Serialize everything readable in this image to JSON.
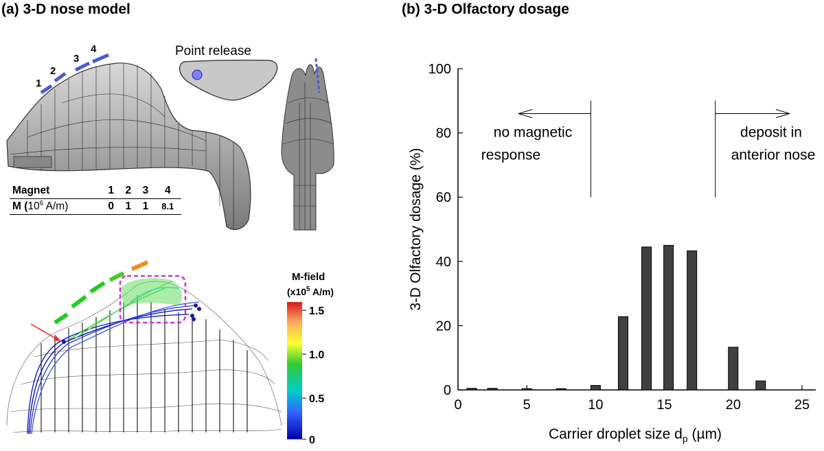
{
  "panel_a": {
    "title": "(a) 3-D nose model",
    "point_release": "Point release",
    "magnet_numbers": [
      "1",
      "2",
      "3",
      "4"
    ],
    "table": {
      "header": [
        "Magnet",
        "1",
        "2",
        "3",
        "4"
      ],
      "row_label_prefix": "M (",
      "row_label_exp": "6",
      "row_label_base": "10",
      "row_label_suffix": " A/m)",
      "values": [
        "0",
        "1",
        "1",
        "8.1"
      ]
    },
    "colorbar": {
      "title": "M-field",
      "unit_prefix": "(x10",
      "unit_exp": "5",
      "unit_suffix": " A/m)",
      "ticks": [
        "1.5",
        "1.0",
        "0.5",
        "0"
      ],
      "colors": [
        "#d7191c",
        "#fdae61",
        "#ffff33",
        "#33cc33",
        "#00cccc",
        "#3366ff",
        "#0000aa"
      ]
    }
  },
  "panel_b": {
    "title": "(b) 3-D Olfactory dosage"
  },
  "chart_data": {
    "type": "bar",
    "title": "3-D Olfactory dosage",
    "xlabel_prefix": "Carrier droplet size d",
    "xlabel_sub": "p",
    "xlabel_suffix": " (µm)",
    "ylabel": "3-D Olfactory dosage (%)",
    "xlim": [
      0,
      26
    ],
    "ylim": [
      0,
      100
    ],
    "xticks": [
      0,
      5,
      10,
      15,
      20,
      25
    ],
    "yticks": [
      0,
      20,
      40,
      60,
      80,
      100
    ],
    "x": [
      1,
      2.5,
      5,
      7.5,
      10,
      12,
      13.7,
      15.3,
      17,
      20,
      22
    ],
    "values": [
      0.5,
      0.5,
      0.4,
      0.4,
      1.4,
      22.8,
      44.5,
      45,
      43.3,
      13.3,
      2.8
    ],
    "bar_color": "#404040",
    "annotations": {
      "left_line1": "no magnetic",
      "left_line2": "response",
      "right_line1": "deposit in",
      "right_line2": "anterior nose",
      "left_boundary_x": 10,
      "right_boundary_x": 19
    }
  }
}
